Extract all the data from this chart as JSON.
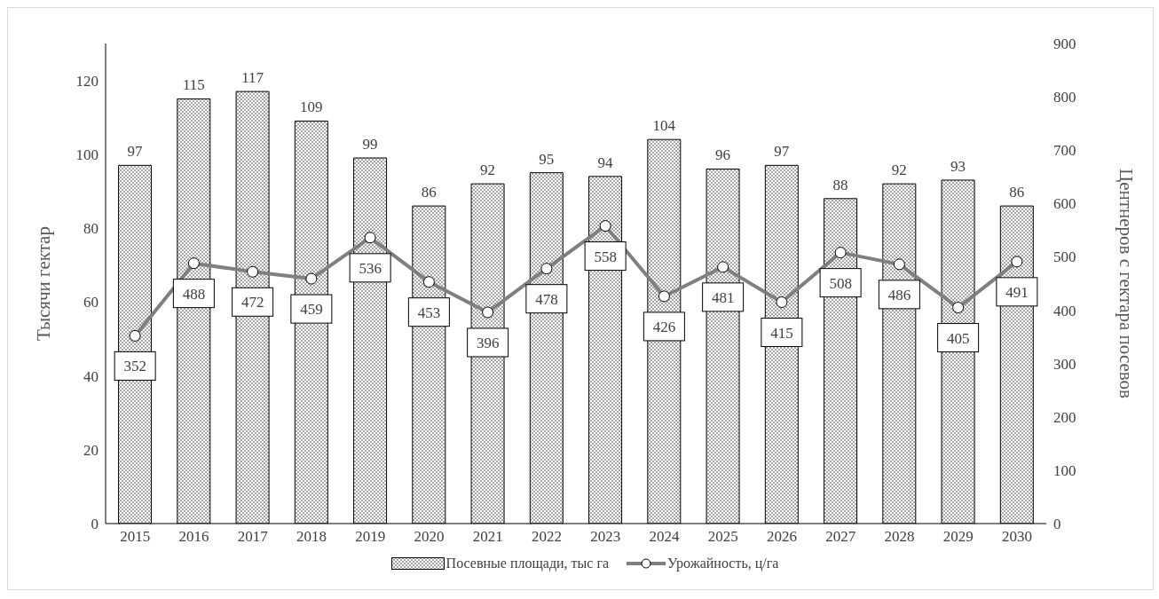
{
  "chart_data": {
    "type": "bar",
    "categories": [
      "2015",
      "2016",
      "2017",
      "2018",
      "2019",
      "2020",
      "2021",
      "2022",
      "2023",
      "2024",
      "2025",
      "2026",
      "2027",
      "2028",
      "2029",
      "2030"
    ],
    "series": [
      {
        "name": "Посевные площади, тыс га",
        "color": "#000000",
        "values": [
          97,
          115,
          117,
          109,
          99,
          86,
          92,
          95,
          94,
          104,
          96,
          97,
          88,
          92,
          93,
          86
        ]
      },
      {
        "name": "Урожайность, ц/га",
        "type": "line",
        "axis": "y2",
        "color": "#7f7f7f",
        "marker": "circle",
        "values": [
          352,
          488,
          472,
          459,
          536,
          453,
          396,
          478,
          558,
          426,
          481,
          415,
          508,
          486,
          405,
          491
        ]
      }
    ],
    "ylabel": "Тысячи гектар",
    "y2label": "Центнеров с гектара посевов",
    "ylim": [
      0,
      130
    ],
    "yticks": [
      0,
      20,
      40,
      60,
      80,
      100,
      120
    ],
    "y2lim": [
      0,
      900
    ],
    "y2ticks": [
      0,
      100,
      200,
      300,
      400,
      500,
      600,
      700,
      800,
      900
    ],
    "data_labels": true,
    "legend": "bottom"
  }
}
